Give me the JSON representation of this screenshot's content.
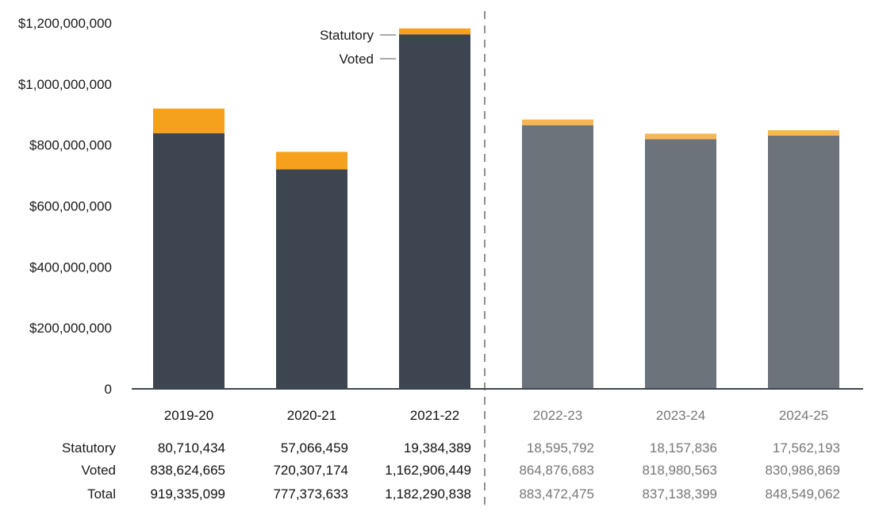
{
  "chart_data": {
    "type": "bar",
    "stacked": true,
    "categories": [
      "2019-20",
      "2020-21",
      "2021-22",
      "2022-23",
      "2023-24",
      "2024-25"
    ],
    "actual_categories": [
      "2019-20",
      "2020-21",
      "2021-22"
    ],
    "planned_categories": [
      "2022-23",
      "2023-24",
      "2024-25"
    ],
    "series": [
      {
        "name": "Voted",
        "values": [
          838624665,
          720307174,
          1162906449,
          864876683,
          818980563,
          830986869
        ]
      },
      {
        "name": "Statutory",
        "values": [
          80710434,
          57066459,
          19384389,
          18595792,
          18157836,
          17562193
        ]
      }
    ],
    "totals": [
      919335099,
      777373633,
      1182290838,
      883472475,
      837138399,
      848549062
    ],
    "yticks": [
      "0",
      "$200,000,000",
      "$400,000,000",
      "$600,000,000",
      "$800,000,000",
      "$1,000,000,000",
      "$1,200,000,000"
    ],
    "ylim": [
      0,
      1200000000
    ],
    "annotation_labels": {
      "statutory": "Statutory",
      "voted": "Voted"
    },
    "table": {
      "row_labels": [
        "Statutory",
        "Voted",
        "Total"
      ],
      "rows": [
        [
          "80,710,434",
          "57,066,459",
          "19,384,389",
          "18,595,792",
          "18,157,836",
          "17,562,193"
        ],
        [
          "838,624,665",
          "720,307,174",
          "1,162,906,449",
          "864,876,683",
          "818,980,563",
          "830,986,869"
        ],
        [
          "919,335,099",
          "777,373,633",
          "1,182,290,838",
          "883,472,475",
          "837,138,399",
          "848,549,062"
        ]
      ]
    },
    "colors": {
      "voted_actual": "#3d4650",
      "voted_planned": "#6c737b",
      "statutory_actual": "#f5a11e",
      "statutory_planned": "#f8b653",
      "text_actual": "#111111",
      "text_planned": "#777777",
      "axis": "#3d4650"
    },
    "grid": false,
    "legend": "none"
  }
}
